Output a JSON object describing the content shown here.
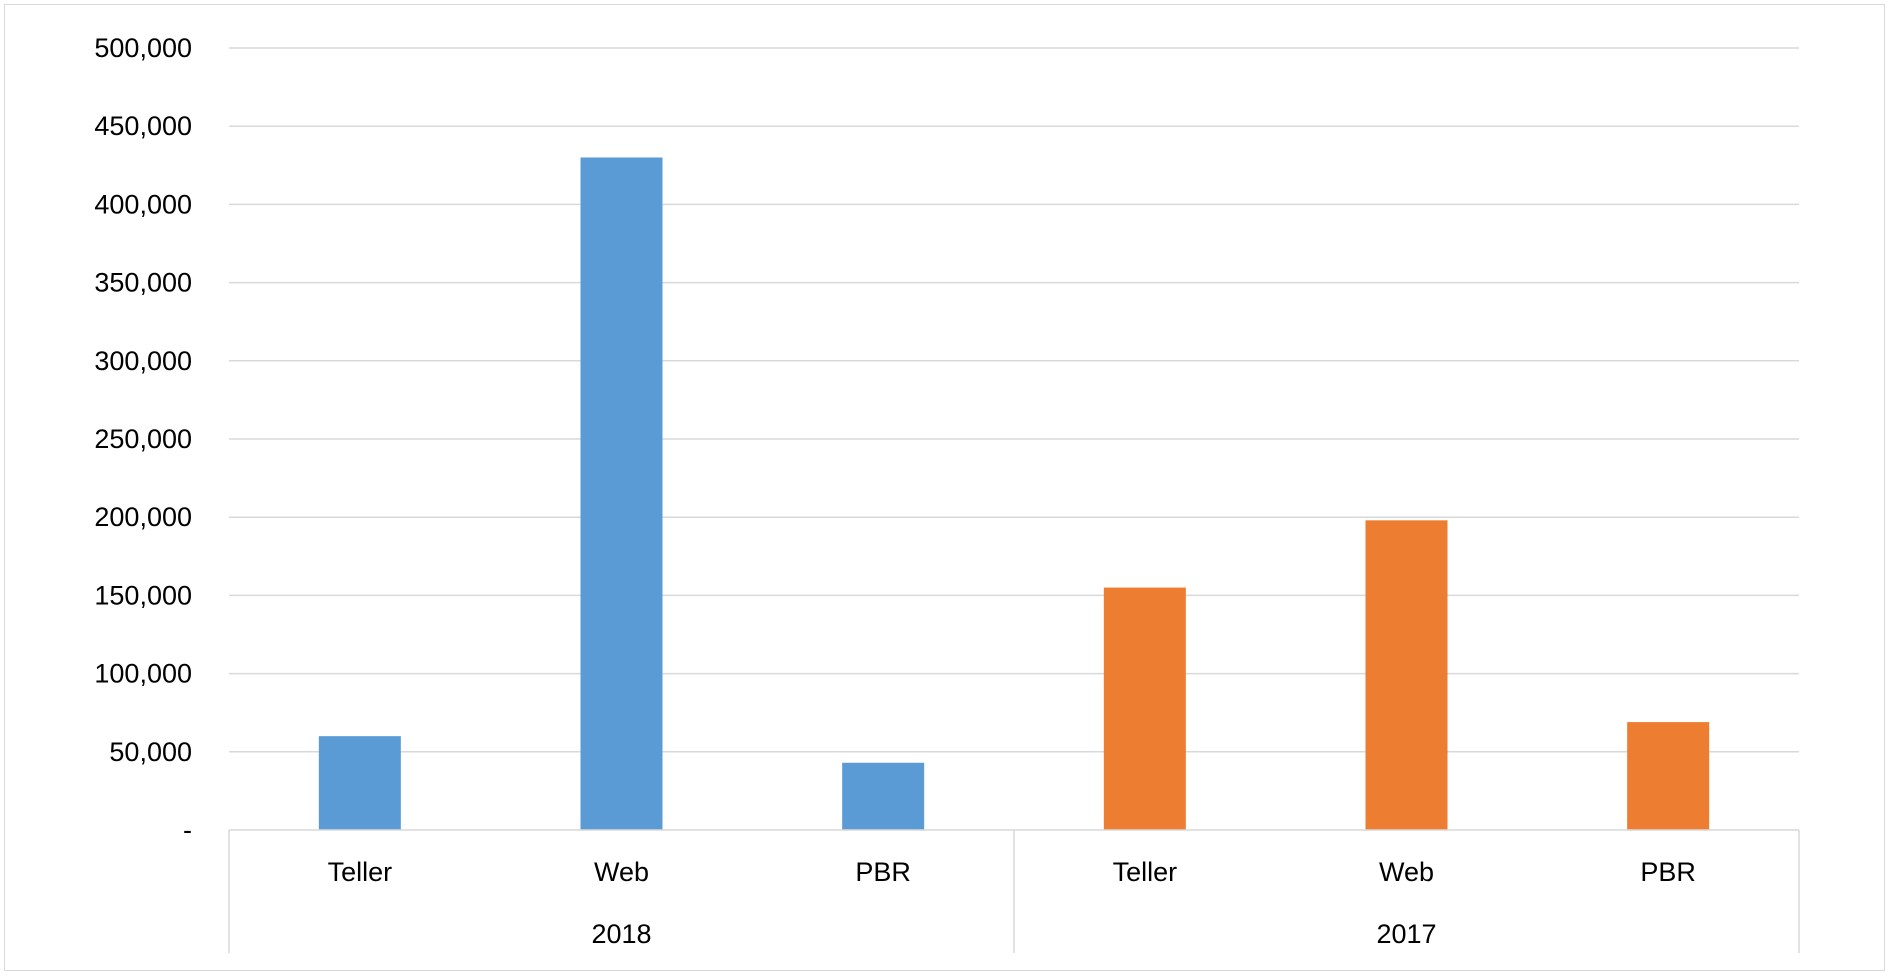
{
  "chart_data": {
    "type": "bar",
    "title": "",
    "xlabel": "",
    "ylabel": "",
    "groups": [
      {
        "label": "2018",
        "categories": [
          "Teller",
          "Web",
          "PBR"
        ],
        "values": [
          60000,
          430000,
          43000
        ],
        "color": "#5b9bd5"
      },
      {
        "label": "2017",
        "categories": [
          "Teller",
          "Web",
          "PBR"
        ],
        "values": [
          155000,
          198000,
          69000
        ],
        "color": "#ed7d31"
      }
    ],
    "ylim": [
      0,
      500000
    ],
    "yticks": [
      0,
      50000,
      100000,
      150000,
      200000,
      250000,
      300000,
      350000,
      400000,
      450000,
      500000
    ],
    "ytick_labels": [
      "-",
      "50,000",
      "100,000",
      "150,000",
      "200,000",
      "250,000",
      "300,000",
      "350,000",
      "400,000",
      "450,000",
      "500,000"
    ],
    "grid": true,
    "gridline_color": "#d9d9d9",
    "legend": "none"
  }
}
